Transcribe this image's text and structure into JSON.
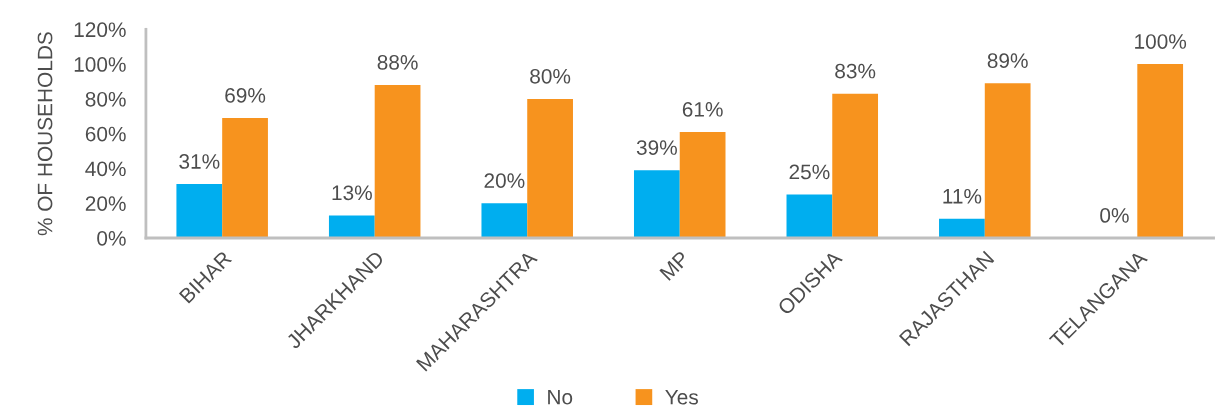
{
  "chart_data": {
    "type": "bar",
    "ylabel": "% OF HOUSEHOLDS",
    "categories": [
      "BIHAR",
      "JHARKHAND",
      "MAHARASHTRA",
      "MP",
      "ODISHA",
      "RAJASTHAN",
      "TELANGANA"
    ],
    "series": [
      {
        "name": "No",
        "color": "#00aeef",
        "values": [
          31,
          13,
          20,
          39,
          25,
          11,
          0
        ],
        "value_labels": [
          "31%",
          "13%",
          "20%",
          "39%",
          "25%",
          "11%",
          "0%"
        ]
      },
      {
        "name": "Yes",
        "color": "#f7931e",
        "values": [
          69,
          88,
          80,
          61,
          83,
          89,
          100
        ],
        "value_labels": [
          "69%",
          "88%",
          "80%",
          "61%",
          "83%",
          "89%",
          "100%"
        ]
      }
    ],
    "ylim": [
      0,
      120
    ],
    "yticks": [
      {
        "value": 0,
        "label": "0%"
      },
      {
        "value": 20,
        "label": "20%"
      },
      {
        "value": 40,
        "label": "40%"
      },
      {
        "value": 60,
        "label": "60%"
      },
      {
        "value": 80,
        "label": "80%"
      },
      {
        "value": 100,
        "label": "100%"
      },
      {
        "value": 120,
        "label": "120%"
      }
    ],
    "legend": "bottom",
    "grid": false
  }
}
